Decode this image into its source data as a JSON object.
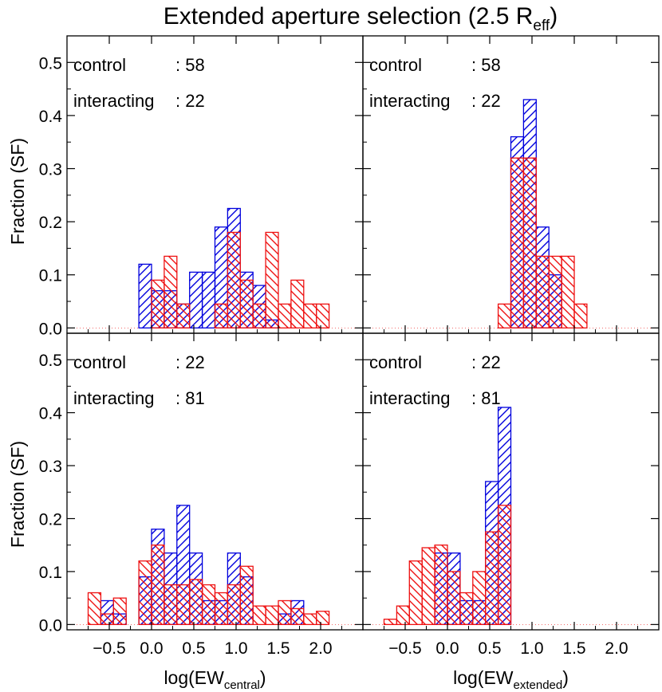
{
  "title": "Extended aperture selection (2.5 R",
  "title_sub": "eff",
  "title_close": ")",
  "ylabel": "Fraction (SF)",
  "colors": {
    "blue": "#0000dd",
    "red": "#ee1111"
  },
  "chart_data": [
    {
      "type": "bar",
      "panel": "top-left",
      "legend": {
        "line1_label": "control",
        "line1_value": ": 58",
        "line2_label": "interacting",
        "line2_value": ": 22"
      },
      "xlim": [
        -1.0,
        2.5
      ],
      "ylim": [
        -0.01,
        0.55
      ],
      "bin_width": 0.15,
      "series": [
        {
          "name": "control",
          "color": "blue",
          "bins": [
            [
              -0.15,
              0.12
            ],
            [
              0.0,
              0.07
            ],
            [
              0.15,
              0.07
            ],
            [
              0.3,
              0.045
            ],
            [
              0.45,
              0.105
            ],
            [
              0.6,
              0.105
            ],
            [
              0.75,
              0.19
            ],
            [
              0.9,
              0.225
            ],
            [
              1.05,
              0.105
            ],
            [
              1.2,
              0.08
            ],
            [
              1.35,
              0.015
            ]
          ]
        },
        {
          "name": "interacting",
          "color": "red",
          "bins": [
            [
              0.0,
              0.09
            ],
            [
              0.15,
              0.135
            ],
            [
              0.3,
              0.045
            ],
            [
              0.75,
              0.045
            ],
            [
              0.9,
              0.18
            ],
            [
              1.05,
              0.09
            ],
            [
              1.2,
              0.045
            ],
            [
              1.35,
              0.18
            ],
            [
              1.5,
              0.045
            ],
            [
              1.65,
              0.09
            ],
            [
              1.8,
              0.045
            ],
            [
              1.95,
              0.045
            ]
          ]
        }
      ],
      "xticks": [
        -0.5,
        0.0,
        0.5,
        1.0,
        1.5,
        2.0
      ],
      "yticks": [
        0.0,
        0.1,
        0.2,
        0.3,
        0.4,
        0.5
      ]
    },
    {
      "type": "bar",
      "panel": "top-right",
      "legend": {
        "line1_label": "control",
        "line1_value": ": 58",
        "line2_label": "interacting",
        "line2_value": ": 22"
      },
      "xlim": [
        -1.0,
        2.5
      ],
      "ylim": [
        -0.01,
        0.55
      ],
      "bin_width": 0.15,
      "series": [
        {
          "name": "control",
          "color": "blue",
          "bins": [
            [
              0.75,
              0.36
            ],
            [
              0.9,
              0.43
            ],
            [
              1.05,
              0.19
            ],
            [
              1.2,
              0.1
            ]
          ]
        },
        {
          "name": "interacting",
          "color": "red",
          "bins": [
            [
              0.6,
              0.045
            ],
            [
              0.75,
              0.32
            ],
            [
              0.9,
              0.32
            ],
            [
              1.05,
              0.135
            ],
            [
              1.2,
              0.135
            ],
            [
              1.35,
              0.135
            ],
            [
              1.5,
              0.045
            ]
          ]
        }
      ],
      "xticks": [
        -0.5,
        0.0,
        0.5,
        1.0,
        1.5,
        2.0
      ],
      "yticks": [
        0.0,
        0.1,
        0.2,
        0.3,
        0.4,
        0.5
      ]
    },
    {
      "type": "bar",
      "panel": "bottom-left",
      "legend": {
        "line1_label": "control",
        "line1_value": ": 22",
        "line2_label": "interacting",
        "line2_value": ": 81"
      },
      "xlim": [
        -1.0,
        2.5
      ],
      "ylim": [
        -0.01,
        0.55
      ],
      "bin_width": 0.15,
      "xlabel": "log(EW",
      "xlabel_sub": "central",
      "xlabel_close": ")",
      "series": [
        {
          "name": "control",
          "color": "blue",
          "bins": [
            [
              -0.6,
              0.045
            ],
            [
              -0.45,
              0.02
            ],
            [
              -0.15,
              0.09
            ],
            [
              0.0,
              0.18
            ],
            [
              0.15,
              0.135
            ],
            [
              0.3,
              0.225
            ],
            [
              0.45,
              0.135
            ],
            [
              0.6,
              0.045
            ],
            [
              0.75,
              0.045
            ],
            [
              0.9,
              0.135
            ],
            [
              1.05,
              0.09
            ],
            [
              1.5,
              0.02
            ],
            [
              1.65,
              0.045
            ]
          ]
        },
        {
          "name": "interacting",
          "color": "red",
          "bins": [
            [
              -0.75,
              0.06
            ],
            [
              -0.6,
              0.02
            ],
            [
              -0.45,
              0.05
            ],
            [
              -0.15,
              0.12
            ],
            [
              0.0,
              0.15
            ],
            [
              0.15,
              0.075
            ],
            [
              0.3,
              0.075
            ],
            [
              0.45,
              0.085
            ],
            [
              0.6,
              0.075
            ],
            [
              0.75,
              0.06
            ],
            [
              0.9,
              0.075
            ],
            [
              1.05,
              0.11
            ],
            [
              1.2,
              0.035
            ],
            [
              1.35,
              0.035
            ],
            [
              1.5,
              0.045
            ],
            [
              1.65,
              0.03
            ],
            [
              1.8,
              0.02
            ],
            [
              1.95,
              0.025
            ]
          ]
        }
      ],
      "xticks": [
        -0.5,
        0.0,
        0.5,
        1.0,
        1.5,
        2.0
      ],
      "yticks": [
        0.0,
        0.1,
        0.2,
        0.3,
        0.4,
        0.5
      ]
    },
    {
      "type": "bar",
      "panel": "bottom-right",
      "legend": {
        "line1_label": "control",
        "line1_value": ": 22",
        "line2_label": "interacting",
        "line2_value": ": 81"
      },
      "xlim": [
        -1.0,
        2.5
      ],
      "ylim": [
        -0.01,
        0.55
      ],
      "bin_width": 0.15,
      "xlabel": "log(EW",
      "xlabel_sub": "extended",
      "xlabel_close": ")",
      "series": [
        {
          "name": "control",
          "color": "blue",
          "bins": [
            [
              -0.15,
              0.135
            ],
            [
              0.0,
              0.135
            ],
            [
              0.15,
              0.045
            ],
            [
              0.3,
              0.045
            ],
            [
              0.45,
              0.27
            ],
            [
              0.6,
              0.41
            ]
          ]
        },
        {
          "name": "interacting",
          "color": "red",
          "bins": [
            [
              -0.75,
              0.01
            ],
            [
              -0.6,
              0.035
            ],
            [
              -0.45,
              0.12
            ],
            [
              -0.3,
              0.145
            ],
            [
              -0.15,
              0.15
            ],
            [
              0.0,
              0.1
            ],
            [
              0.15,
              0.06
            ],
            [
              0.3,
              0.1
            ],
            [
              0.45,
              0.175
            ],
            [
              0.6,
              0.225
            ]
          ]
        }
      ],
      "xticks": [
        -0.5,
        0.0,
        0.5,
        1.0,
        1.5,
        2.0
      ],
      "yticks": [
        0.0,
        0.1,
        0.2,
        0.3,
        0.4,
        0.5
      ]
    }
  ]
}
